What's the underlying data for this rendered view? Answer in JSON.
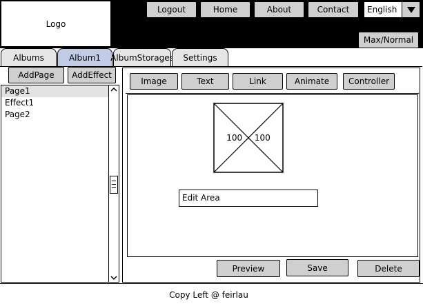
{
  "header": {
    "logo_text": "Logo",
    "nav": [
      "Logout",
      "Home",
      "About",
      "Contact"
    ],
    "language": {
      "selected": "English",
      "arrow_icon": "triangle-down-icon"
    },
    "max_normal_label": "Max/Normal"
  },
  "tabs": [
    {
      "label": "Albums",
      "active": false
    },
    {
      "label": "Album1",
      "active": true
    },
    {
      "label": "AlbumStorages",
      "active": false
    },
    {
      "label": "Settings",
      "active": false
    }
  ],
  "sidebar": {
    "add_page_label": "AddPage",
    "add_effect_label": "AddEffect",
    "items": [
      {
        "label": "Page1",
        "selected": true
      },
      {
        "label": "Effect1",
        "selected": false
      },
      {
        "label": "Page2",
        "selected": false
      }
    ]
  },
  "toolbar": {
    "buttons": [
      "Image",
      "Text",
      "Link",
      "Animate",
      "Controller"
    ]
  },
  "canvas": {
    "image_placeholder_text": "100 × 100",
    "edit_area_text": "Edit Area"
  },
  "actions": {
    "preview": "Preview",
    "save": "Save",
    "delete": "Delete"
  },
  "footer": {
    "text": "Copy Left @ feirlau"
  },
  "colors": {
    "header_bg": "#000000",
    "button_bg": "#cfcfcf",
    "active_tab_bg": "#c3cce6",
    "inactive_tab_bg": "#e6e6e6",
    "selected_item_bg": "#e3e3e3"
  }
}
